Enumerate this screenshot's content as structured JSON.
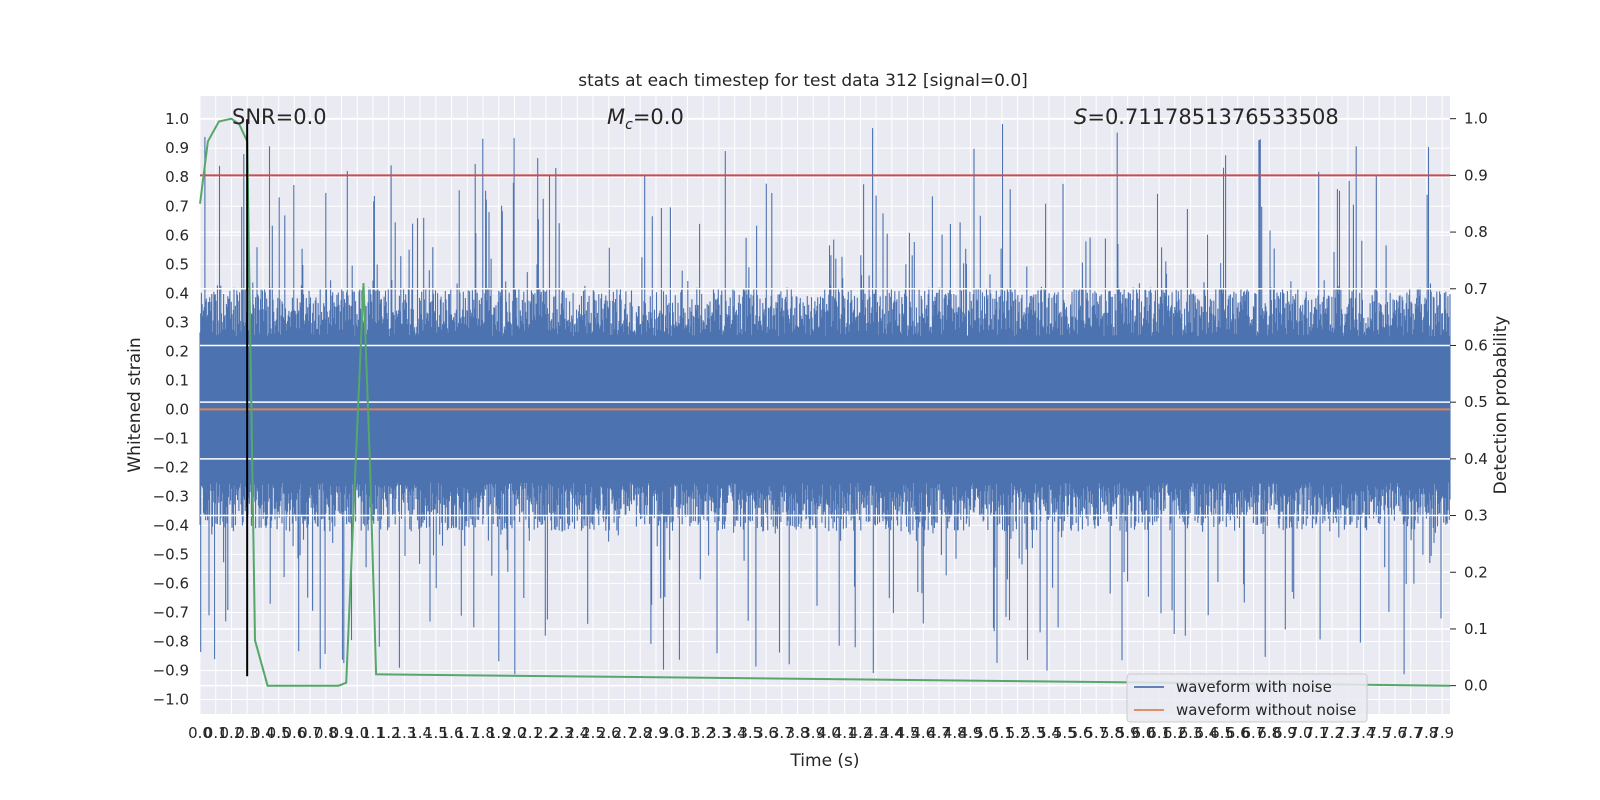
{
  "chart_data": {
    "type": "line",
    "title": "stats at each timestep for test data 312 [signal=0.0]",
    "xlabel": "Time (s)",
    "ylabel": "Whitened strain",
    "y2label": "Detection probability",
    "xlim": [
      0.0,
      7.95
    ],
    "ylim": [
      -1.05,
      1.08
    ],
    "y2lim": [
      -0.05,
      1.04
    ],
    "x_ticks": [
      0.0,
      0.1,
      0.2,
      0.3,
      0.4,
      0.5,
      0.6,
      0.7,
      0.8,
      0.9,
      1.0,
      1.1,
      1.2,
      1.3,
      1.4,
      1.5,
      1.6,
      1.7,
      1.8,
      1.9,
      2.0,
      2.1,
      2.2,
      2.3,
      2.4,
      2.5,
      2.6,
      2.7,
      2.8,
      2.9,
      3.0,
      3.1,
      3.2,
      3.3,
      3.4,
      3.5,
      3.6,
      3.7,
      3.8,
      3.9,
      4.0,
      4.1,
      4.2,
      4.3,
      4.4,
      4.5,
      4.6,
      4.7,
      4.8,
      4.9,
      5.0,
      5.1,
      5.2,
      5.3,
      5.4,
      5.5,
      5.6,
      5.7,
      5.8,
      5.9,
      6.0,
      6.1,
      6.2,
      6.3,
      6.4,
      6.5,
      6.6,
      6.7,
      6.8,
      6.9,
      7.0,
      7.1,
      7.2,
      7.3,
      7.4,
      7.5,
      7.6,
      7.7,
      7.8,
      7.9
    ],
    "y_ticks": [
      -1.0,
      -0.9,
      -0.8,
      -0.7,
      -0.6,
      -0.5,
      -0.4,
      -0.3,
      -0.2,
      -0.1,
      0.0,
      0.1,
      0.2,
      0.3,
      0.4,
      0.5,
      0.6,
      0.7,
      0.8,
      0.9,
      1.0
    ],
    "y2_ticks": [
      0.0,
      0.1,
      0.2,
      0.3,
      0.4,
      0.5,
      0.6,
      0.7,
      0.8,
      0.9,
      1.0
    ],
    "annotations": {
      "snr": "SNR=0.0",
      "mc_symbol": "M",
      "mc_subscript": "c",
      "mc_value": "=0.0",
      "s_symbol": "S",
      "s_value": "=0.7117851376533508"
    },
    "threshold": {
      "axis": "right",
      "y": 0.9,
      "color": "#c44e52"
    },
    "marker_line": {
      "x": 0.3,
      "y_range": [
        -0.92,
        1.0
      ],
      "color": "#000000"
    },
    "grid": true,
    "legend_position": "bottom-right",
    "series": [
      {
        "name": "waveform with noise",
        "color": "#4c72b0",
        "axis": "left",
        "kind": "dense-noise",
        "x_range": [
          0.0,
          7.95
        ],
        "typical_range": [
          -0.42,
          0.42
        ],
        "peak_range": [
          -0.92,
          1.0
        ]
      },
      {
        "name": "waveform without noise",
        "color": "#dd8452",
        "axis": "left",
        "x": [
          0.0,
          7.95
        ],
        "y": [
          0.0,
          0.0
        ]
      },
      {
        "name": "",
        "color": "#55a868",
        "axis": "right",
        "x": [
          0.0,
          0.05,
          0.12,
          0.2,
          0.25,
          0.3,
          0.35,
          0.43,
          0.88,
          0.93,
          0.98,
          1.04,
          1.08,
          1.12,
          7.95
        ],
        "y": [
          0.85,
          0.96,
          0.995,
          1.0,
          0.99,
          0.96,
          0.08,
          0.0,
          0.0,
          0.005,
          0.33,
          0.71,
          0.4,
          0.02,
          0.0
        ]
      }
    ]
  }
}
